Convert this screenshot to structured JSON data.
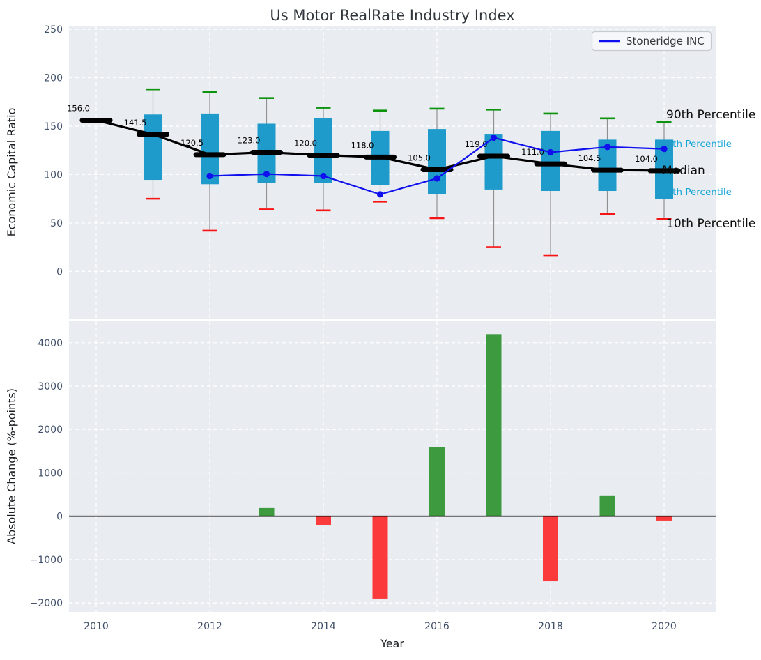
{
  "figure": {
    "title": "Us Motor RealRate Industry Index"
  },
  "legend": {
    "label": "Stoneridge INC"
  },
  "right_labels": {
    "p90": "90th Percentile",
    "p75": "75th Percentile",
    "median": "Median",
    "p25": "25th Percentile",
    "p10": "10th Percentile"
  },
  "axes": {
    "top": {
      "ylabel": "Economic Capital Ratio",
      "ytick_labels": [
        "0",
        "50",
        "100",
        "150",
        "200",
        "250"
      ],
      "ytick_values": [
        0,
        50,
        100,
        150,
        200,
        250
      ]
    },
    "bottom": {
      "ylabel": "Absolute Change (%-points)",
      "xlabel": "Year",
      "ytick_labels": [
        "−2000",
        "−1000",
        "0",
        "1000",
        "2000",
        "3000",
        "4000"
      ],
      "ytick_values": [
        -2000,
        -1000,
        0,
        1000,
        2000,
        3000,
        4000
      ],
      "xtick_labels": [
        "2010",
        "2012",
        "2014",
        "2016",
        "2018",
        "2020"
      ],
      "xtick_values": [
        2010,
        2012,
        2014,
        2016,
        2018,
        2020
      ]
    }
  },
  "chart_data": [
    {
      "type": "boxplot",
      "title": "Us Motor RealRate Industry Index",
      "xlabel": "Year",
      "ylabel": "Economic Capital Ratio",
      "grid": true,
      "legend_position": "upper right",
      "ylim": [
        -48.7,
        253.6
      ],
      "xlim": [
        2009.52,
        2020.91
      ],
      "years": [
        2010,
        2011,
        2012,
        2013,
        2014,
        2015,
        2016,
        2017,
        2018,
        2019,
        2020
      ],
      "median": [
        156.0,
        141.5,
        120.5,
        123.0,
        120.0,
        118.0,
        105.0,
        119.0,
        111.0,
        104.5,
        104.0
      ],
      "q1": [
        null,
        94.5,
        90.0,
        91.0,
        91.5,
        89.0,
        80.0,
        84.5,
        83.0,
        83.0,
        74.5
      ],
      "q3": [
        null,
        162.0,
        163.0,
        152.5,
        158.0,
        145.0,
        147.0,
        142.0,
        145.0,
        136.0,
        136.0
      ],
      "p10": [
        null,
        75.0,
        42.0,
        64.0,
        63.0,
        72.0,
        55.0,
        25.0,
        16.0,
        59.0,
        54.0
      ],
      "p90": [
        null,
        188.0,
        185.0,
        179.0,
        169.0,
        166.0,
        168.0,
        167.0,
        163.0,
        158.0,
        154.5
      ],
      "series": [
        {
          "name": "Stoneridge INC",
          "x": [
            2012,
            2013,
            2014,
            2015,
            2016,
            2017,
            2018,
            2019,
            2020
          ],
          "values": [
            98.5,
            100.5,
            98.5,
            79.5,
            96.0,
            138.0,
            123.0,
            128.5,
            126.5
          ]
        }
      ]
    },
    {
      "type": "bar",
      "xlabel": "Year",
      "ylabel": "Absolute Change (%-points)",
      "grid": true,
      "ylim": [
        -2206,
        4495
      ],
      "years": [
        2010,
        2011,
        2012,
        2013,
        2014,
        2015,
        2016,
        2017,
        2018,
        2019,
        2020
      ],
      "values": [
        null,
        null,
        null,
        190,
        -200,
        -1900,
        1590,
        4200,
        -1500,
        480,
        -100
      ]
    }
  ],
  "colors": {
    "axes_bg": "#e9edf1",
    "grid": "#ffffff",
    "box": "#1f9bcb",
    "whisker": "#909090",
    "cap_high": "#0d930d",
    "cap_low": "#f81414",
    "median_line": "#000000",
    "company_line": "#1010ee",
    "bar_positive": "#3d9a3e",
    "bar_negative": "#fb3b3b",
    "zero_line": "#000000",
    "annotation_cyan": "#19a6d6"
  }
}
